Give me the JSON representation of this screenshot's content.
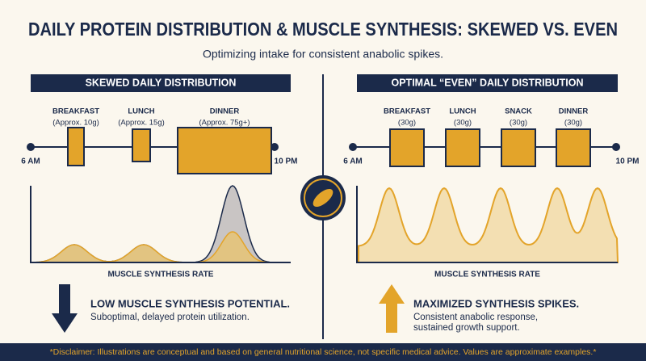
{
  "header": {
    "title": "DAILY PROTEIN DISTRIBUTION & MUSCLE SYNTHESIS: SKEWED VS. EVEN",
    "subtitle": "Optimizing intake for consistent anabolic spikes."
  },
  "panels": [
    {
      "heading": "SKEWED DAILY DISTRIBUTION",
      "start": "6 AM",
      "end": "10 PM",
      "meals": [
        {
          "name": "BREAKFAST",
          "amount": "(Approx. 10g)"
        },
        {
          "name": "LUNCH",
          "amount": "(Approx. 15g)"
        },
        {
          "name": "DINNER",
          "amount": "(Approx. 75g+)"
        }
      ],
      "curve_label": "MUSCLE SYNTHESIS RATE",
      "outcome": {
        "title": "LOW MUSCLE SYNTHESIS POTENTIAL.",
        "lines": [
          "Suboptimal, delayed protein utilization."
        ]
      }
    },
    {
      "heading": "OPTIMAL “EVEN” DAILY DISTRIBUTION",
      "start": "6 AM",
      "end": "10 PM",
      "meals": [
        {
          "name": "BREAKFAST",
          "amount": "(30g)"
        },
        {
          "name": "LUNCH",
          "amount": "(30g)"
        },
        {
          "name": "SNACK",
          "amount": "(30g)"
        },
        {
          "name": "DINNER",
          "amount": "(30g)"
        }
      ],
      "curve_label": "MUSCLE SYNTHESIS RATE",
      "outcome": {
        "title": "MAXIMIZED SYNTHESIS SPIKES.",
        "lines": [
          "Consistent anabolic response,",
          "sustained growth support."
        ]
      }
    }
  ],
  "disclaimer": "*Disclaimer: Illustrations are conceptual and based on general nutritional science, not specific medical advice. Values are approximate examples.*"
}
